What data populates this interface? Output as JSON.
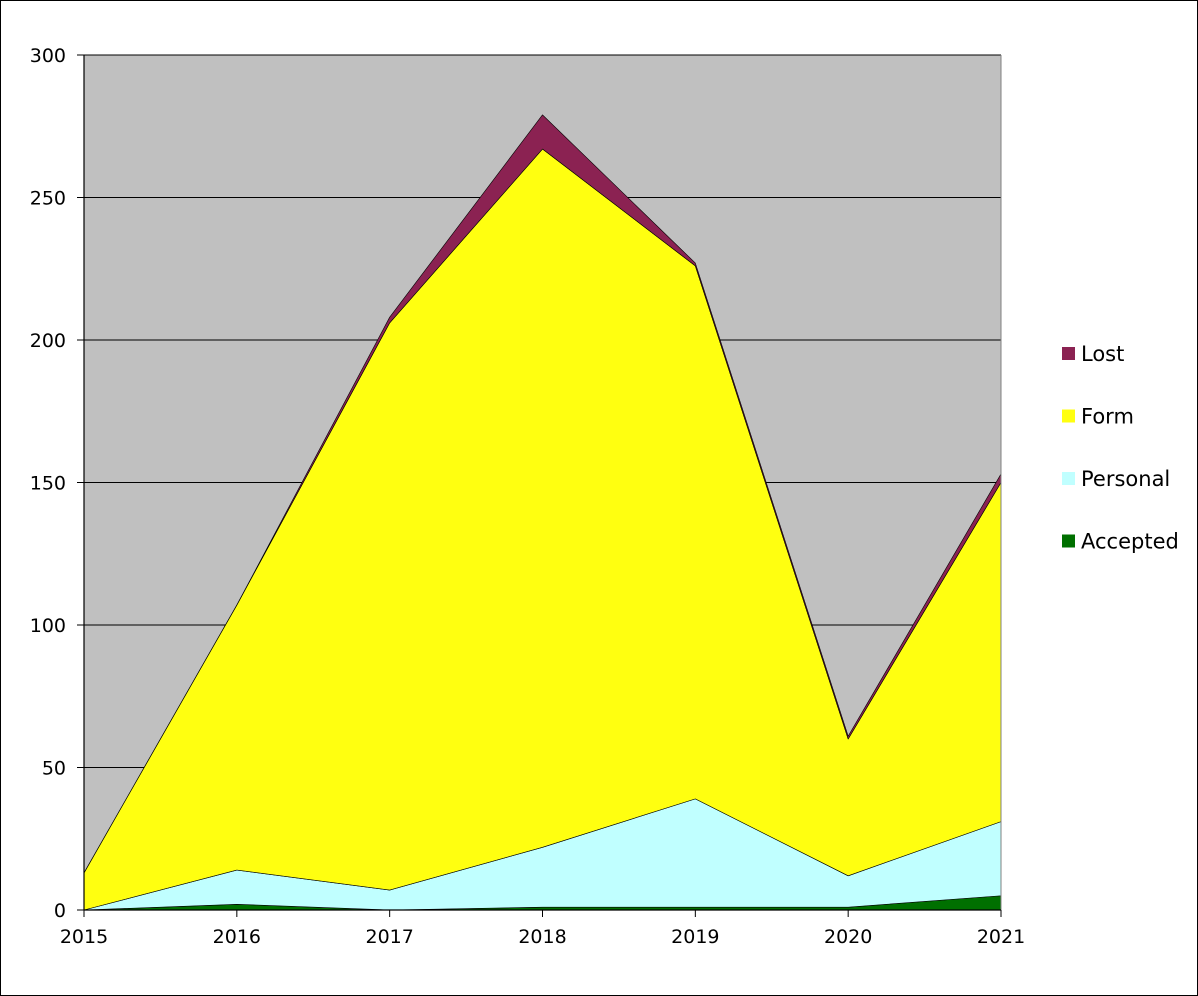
{
  "chart_data": {
    "type": "area",
    "stacked": true,
    "title": "",
    "xlabel": "",
    "ylabel": "",
    "categories": [
      "2015",
      "2016",
      "2017",
      "2018",
      "2019",
      "2020",
      "2021"
    ],
    "ylim": [
      0,
      300
    ],
    "yticks": [
      "0",
      "50",
      "100",
      "150",
      "200",
      "250",
      "300"
    ],
    "grid": true,
    "legend_position": "right",
    "plot_background": "#C0C0C0",
    "series": [
      {
        "name": "Accepted",
        "color": "#007000",
        "values": [
          0,
          2,
          0,
          1,
          1,
          1,
          5
        ]
      },
      {
        "name": "Personal",
        "color": "#C0FFFF",
        "values": [
          0,
          12,
          7,
          21,
          38,
          11,
          26
        ]
      },
      {
        "name": "Form",
        "color": "#FFFF10",
        "values": [
          13,
          93,
          199,
          245,
          187,
          48,
          119
        ]
      },
      {
        "name": "Lost",
        "color": "#8B2252",
        "values": [
          0,
          0,
          2,
          12,
          1,
          1,
          3
        ]
      }
    ],
    "legend_order": [
      "Lost",
      "Form",
      "Personal",
      "Accepted"
    ]
  }
}
